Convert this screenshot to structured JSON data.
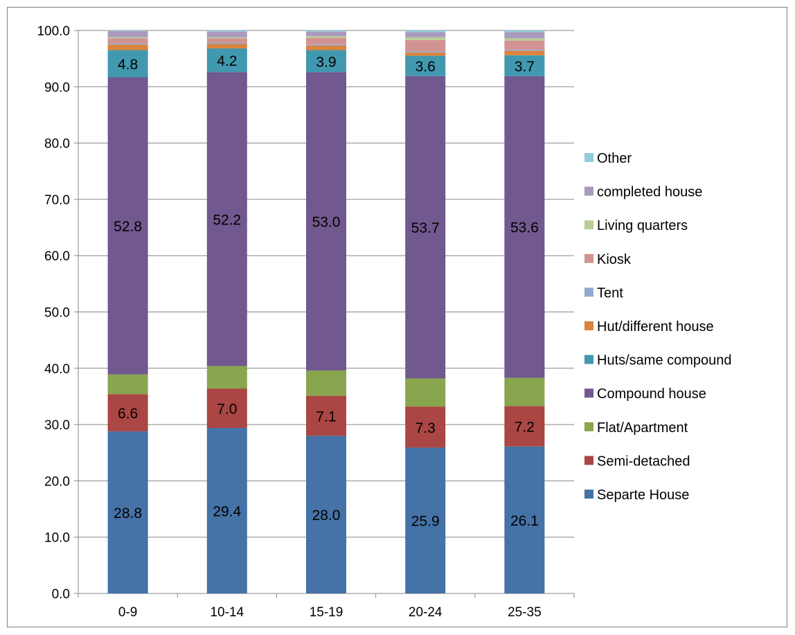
{
  "chart_data": {
    "type": "bar",
    "stacked": true,
    "title": "",
    "xlabel": "",
    "ylabel": "",
    "ylim": [
      0,
      100
    ],
    "yticks": [
      "0.0",
      "10.0",
      "20.0",
      "30.0",
      "40.0",
      "50.0",
      "60.0",
      "70.0",
      "80.0",
      "90.0",
      "100.0"
    ],
    "grid": true,
    "legend_position": "right",
    "categories": [
      "0-9",
      "10-14",
      "15-19",
      "20-24",
      "25-35"
    ],
    "series": [
      {
        "name": "Separte House",
        "color": "#4572a7",
        "values": [
          28.8,
          29.4,
          28.0,
          25.9,
          26.1
        ],
        "labels": [
          "28.8",
          "29.4",
          "28.0",
          "25.9",
          "26.1"
        ]
      },
      {
        "name": "Semi-detached",
        "color": "#aa4643",
        "values": [
          6.6,
          7.0,
          7.1,
          7.3,
          7.2
        ],
        "labels": [
          "6.6",
          "7.0",
          "7.1",
          "7.3",
          "7.2"
        ]
      },
      {
        "name": "Flat/Apartment",
        "color": "#89a54e",
        "values": [
          3.5,
          4.0,
          4.5,
          5.0,
          5.0
        ],
        "labels": null
      },
      {
        "name": "Compound house",
        "color": "#71588f",
        "values": [
          52.8,
          52.2,
          53.0,
          53.7,
          53.6
        ],
        "labels": [
          "52.8",
          "52.2",
          "53.0",
          "53.7",
          "53.6"
        ]
      },
      {
        "name": "Huts/same compound",
        "color": "#4198af",
        "values": [
          4.8,
          4.2,
          3.9,
          3.6,
          3.7
        ],
        "labels": [
          "4.8",
          "4.2",
          "3.9",
          "3.6",
          "3.7"
        ]
      },
      {
        "name": "Hut/different house",
        "color": "#db843d",
        "values": [
          1.0,
          0.8,
          0.8,
          0.6,
          0.8
        ],
        "labels": null
      },
      {
        "name": "Tent",
        "color": "#93a9cf",
        "values": [
          0.2,
          0.2,
          0.2,
          0.2,
          0.2
        ],
        "labels": null
      },
      {
        "name": "Kiosk",
        "color": "#d19392",
        "values": [
          0.9,
          0.8,
          1.2,
          2.0,
          1.6
        ],
        "labels": null
      },
      {
        "name": "Living quarters",
        "color": "#b9cd96",
        "values": [
          0.2,
          0.2,
          0.3,
          0.5,
          0.4
        ],
        "labels": null
      },
      {
        "name": "completed house",
        "color": "#a99bbd",
        "values": [
          1.1,
          1.0,
          0.8,
          0.9,
          1.1
        ],
        "labels": null
      },
      {
        "name": "Other",
        "color": "#92cddc",
        "values": [
          0.1,
          0.2,
          0.2,
          0.3,
          0.3
        ],
        "labels": null
      }
    ]
  }
}
